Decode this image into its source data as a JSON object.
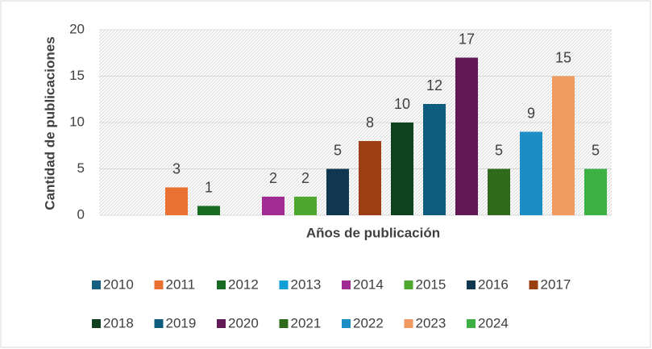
{
  "chart_data": {
    "type": "bar",
    "x_label": "Años de publicación",
    "y_label": "Cantidad de publicaciones",
    "categories": [
      "2010",
      "2011",
      "2012",
      "2013",
      "2014",
      "2015",
      "2016",
      "2017",
      "2018",
      "2019",
      "2020",
      "2021",
      "2022",
      "2023",
      "2024"
    ],
    "values": [
      0,
      3,
      1,
      0,
      2,
      2,
      5,
      8,
      10,
      12,
      17,
      5,
      9,
      15,
      5
    ],
    "colors": [
      "#156082",
      "#e97132",
      "#196b24",
      "#0f9ed5",
      "#a02b93",
      "#4ea72e",
      "#10374f",
      "#9b3f12",
      "#0f4020",
      "#0d5c7e",
      "#621a57",
      "#2f6b1b",
      "#1d8dc5",
      "#f09a62",
      "#3cb043"
    ],
    "ylim": [
      0,
      20
    ],
    "yticks": [
      0,
      5,
      10,
      15,
      20
    ],
    "grid": true,
    "legend": "bottom"
  }
}
